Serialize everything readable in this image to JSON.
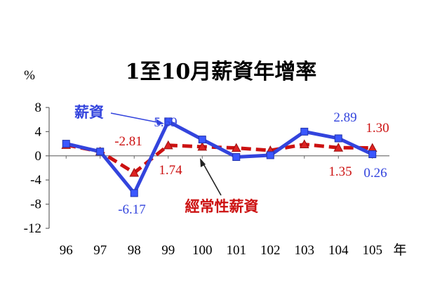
{
  "chart_data": {
    "type": "line",
    "title": "1至10月薪資年增率",
    "ylabel": "%",
    "x_unit": "年",
    "categories": [
      "96",
      "97",
      "98",
      "99",
      "100",
      "101",
      "102",
      "103",
      "104",
      "105"
    ],
    "ylim": [
      -12,
      8
    ],
    "yticks": [
      "8",
      "4",
      "0",
      "-4",
      "-8",
      "-12"
    ],
    "grid": false,
    "series": [
      {
        "name": "薪資",
        "color": "#3344dd",
        "style": "solid",
        "marker": "square",
        "values": [
          2.0,
          0.7,
          -6.17,
          5.69,
          2.7,
          -0.2,
          0.1,
          4.0,
          2.89,
          0.26
        ]
      },
      {
        "name": "經常性薪資",
        "color": "#cc1111",
        "style": "dashed",
        "marker": "triangle",
        "values": [
          1.8,
          0.7,
          -2.81,
          1.74,
          1.5,
          1.3,
          0.9,
          1.9,
          1.35,
          1.3
        ]
      }
    ],
    "annotations": [
      {
        "text": "5.69",
        "color": "#3344dd"
      },
      {
        "text": "-6.17",
        "color": "#3344dd"
      },
      {
        "text": "2.89",
        "color": "#3344dd"
      },
      {
        "text": "0.26",
        "color": "#3344dd"
      },
      {
        "text": "-2.81",
        "color": "#cc1111"
      },
      {
        "text": "1.74",
        "color": "#cc1111"
      },
      {
        "text": "1.35",
        "color": "#cc1111"
      },
      {
        "text": "1.30",
        "color": "#cc1111"
      }
    ]
  }
}
